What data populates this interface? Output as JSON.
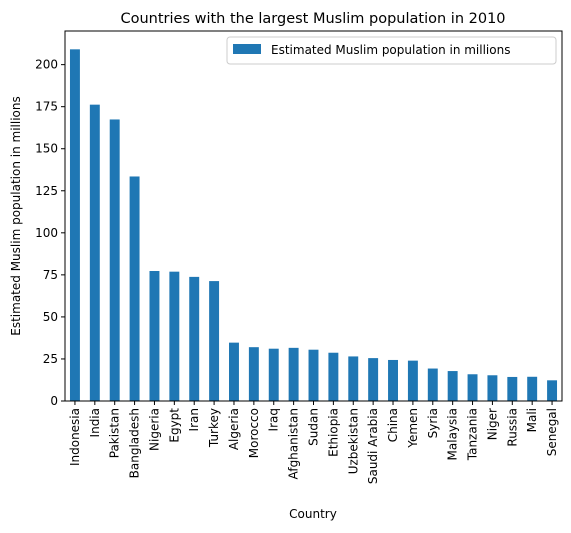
{
  "chart_data": {
    "type": "bar",
    "title": "Countries with the largest Muslim population in 2010",
    "xlabel": "Country",
    "ylabel": "Estimated Muslim population in millions",
    "ylim": [
      0,
      220
    ],
    "yticks": [
      0,
      25,
      50,
      75,
      100,
      125,
      150,
      175,
      200
    ],
    "grid": false,
    "legend_position": "top-right",
    "bar_color": "#1f77b4",
    "categories": [
      "Indonesia",
      "India",
      "Pakistan",
      "Bangladesh",
      "Nigeria",
      "Egypt",
      "Iran",
      "Turkey",
      "Algeria",
      "Morocco",
      "Iraq",
      "Afghanistan",
      "Sudan",
      "Ethiopia",
      "Uzbekistan",
      "Saudi Arabia",
      "China",
      "Yemen",
      "Syria",
      "Malaysia",
      "Tanzania",
      "Niger",
      "Russia",
      "Mali",
      "Senegal"
    ],
    "series": [
      {
        "name": "Estimated Muslim population in millions",
        "values": [
          209.1,
          176.2,
          167.4,
          133.5,
          77.3,
          76.9,
          73.8,
          71.3,
          34.7,
          32.0,
          31.1,
          31.6,
          30.5,
          28.7,
          26.5,
          25.5,
          24.4,
          24.0,
          19.3,
          17.8,
          15.9,
          15.3,
          14.3,
          14.4,
          12.3
        ]
      }
    ]
  }
}
